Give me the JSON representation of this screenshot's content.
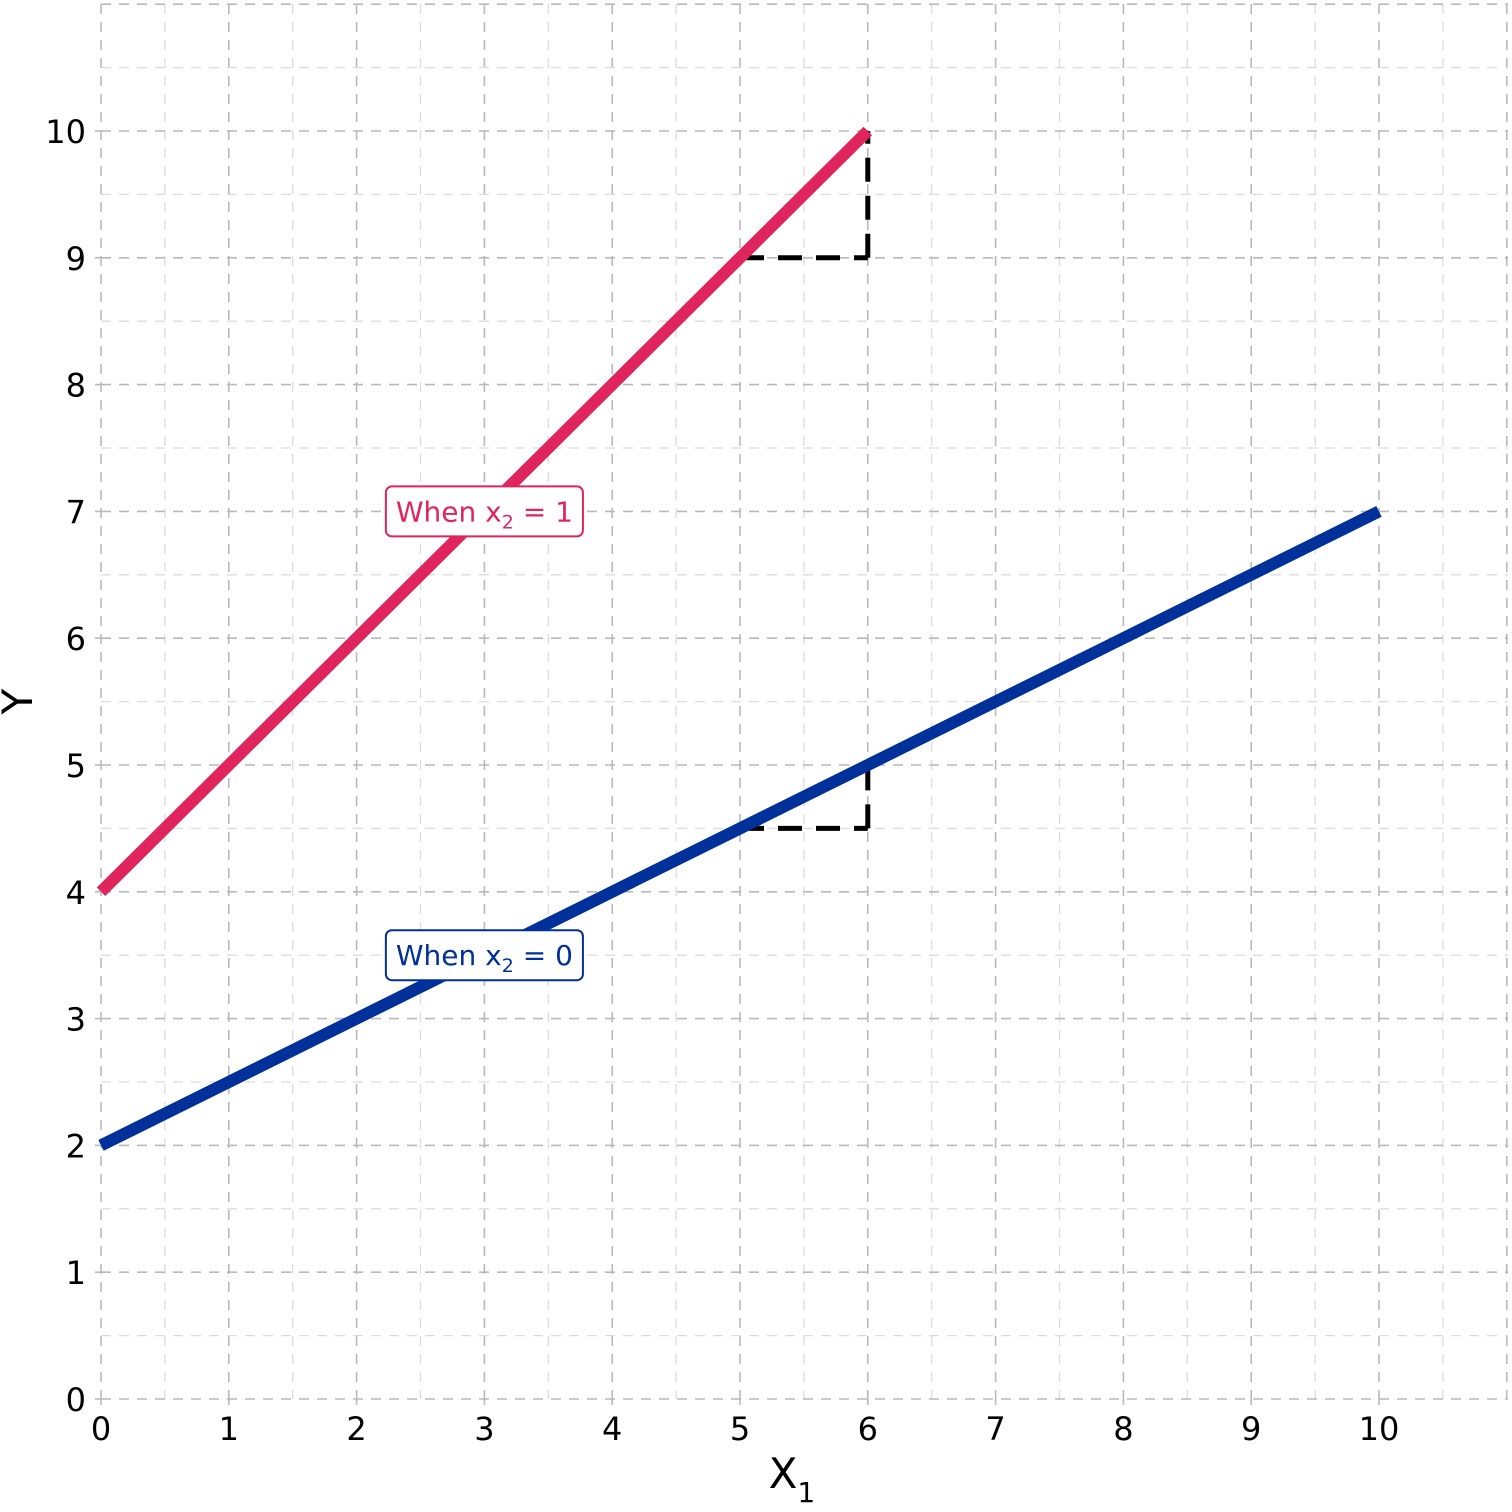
{
  "chart_data": {
    "type": "line",
    "xlabel": "X",
    "xlabel_sub": "1",
    "ylabel": "Y",
    "xlim": [
      0,
      11
    ],
    "ylim": [
      0,
      11
    ],
    "x_ticks": [
      "0",
      "1",
      "2",
      "3",
      "4",
      "5",
      "6",
      "7",
      "8",
      "9",
      "10"
    ],
    "y_ticks": [
      "0",
      "1",
      "2",
      "3",
      "4",
      "5",
      "6",
      "7",
      "8",
      "9",
      "10"
    ],
    "grid": true,
    "series": [
      {
        "key": "x2_1",
        "color": "#e0245e",
        "x": [
          0,
          6
        ],
        "y": [
          4,
          10
        ],
        "label_prefix": "When x",
        "label_sub": "2",
        "label_suffix": " = 1",
        "label_at": [
          3,
          7
        ]
      },
      {
        "key": "x2_0",
        "color": "#00309a",
        "x": [
          0,
          10
        ],
        "y": [
          2,
          7
        ],
        "label_prefix": "When x",
        "label_sub": "2",
        "label_suffix": " = 0",
        "label_at": [
          3,
          3.5
        ]
      }
    ],
    "slope_triangles": [
      {
        "color": "#000000",
        "x": [
          5,
          6
        ],
        "y_base": 9,
        "y_top": 10
      },
      {
        "color": "#000000",
        "x": [
          5,
          6
        ],
        "y_base": 4.5,
        "y_top": 5
      }
    ]
  }
}
